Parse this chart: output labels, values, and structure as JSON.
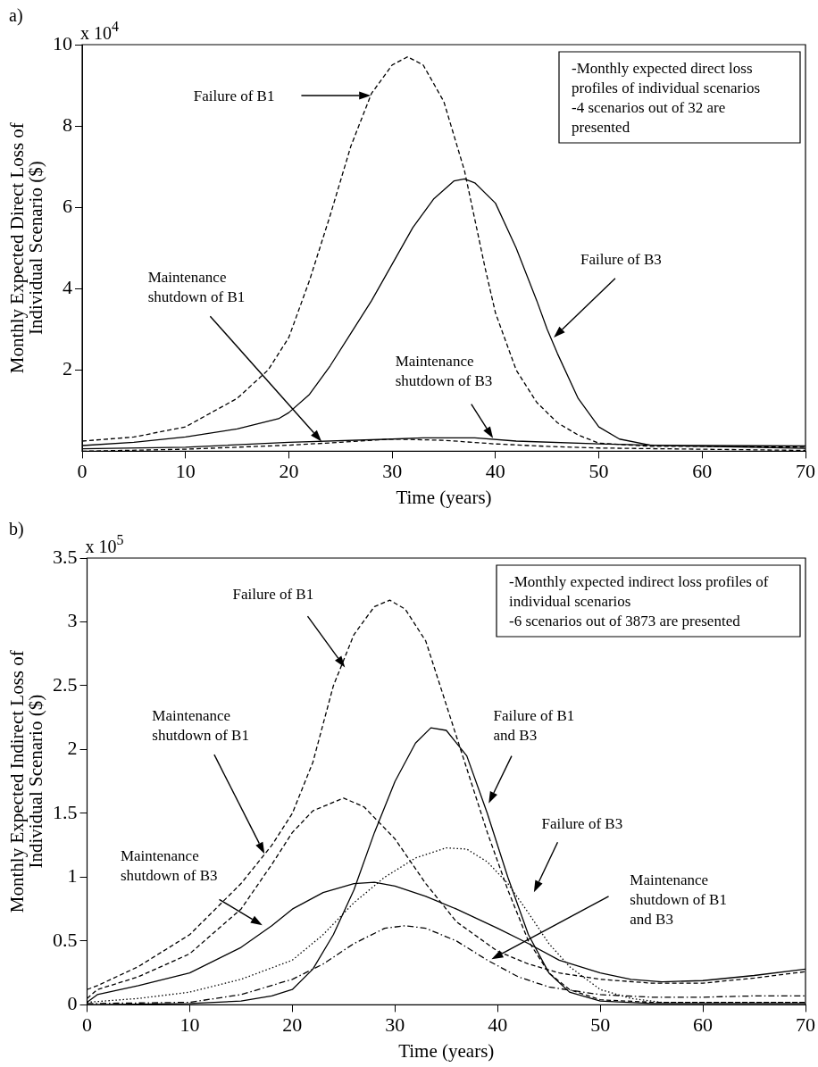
{
  "chart_data": [
    {
      "type": "line",
      "title": "a)",
      "xlabel": "Time (years)",
      "ylabel": "Monthly Expected Direct Loss of Individual Scenario ($)",
      "xlim": [
        0,
        70
      ],
      "xticks": [
        0,
        10,
        20,
        30,
        40,
        50,
        60,
        70
      ],
      "ylim": [
        0,
        10
      ],
      "yticks": [
        2,
        4,
        6,
        8,
        10
      ],
      "grid": false,
      "legend": false,
      "annotations": [
        "x 10$^{4}$",
        "-Monthly expected direct loss profiles of individual scenarios",
        "-4 scenarios out of 32 are presented",
        "Failure of B1",
        "Failure of B3",
        "Maintenance shutdown of B1",
        "Maintenance shutdown of B3"
      ],
      "series": [
        {
          "color": "#000000",
          "line_style": "dashed",
          "x": [
            0,
            5,
            10,
            15,
            18,
            20,
            22,
            24,
            26,
            28,
            30,
            31.5,
            33,
            35,
            37,
            38,
            39,
            40,
            42,
            44,
            46,
            48,
            50,
            55,
            60,
            70
          ],
          "values": [
            0.25,
            0.35,
            0.6,
            1.3,
            2.0,
            2.8,
            4.2,
            5.8,
            7.5,
            8.8,
            9.5,
            9.7,
            9.5,
            8.6,
            6.9,
            5.7,
            4.5,
            3.4,
            2.0,
            1.2,
            0.7,
            0.4,
            0.2,
            0.12,
            0.12,
            0.1
          ]
        },
        {
          "color": "#000000",
          "line_style": "solid",
          "x": [
            0,
            5,
            10,
            15,
            19,
            20,
            22,
            24,
            26,
            28,
            30,
            32,
            34,
            36,
            37,
            38,
            40,
            42,
            44,
            45,
            46,
            48,
            50,
            52,
            55,
            60,
            70
          ],
          "values": [
            0.14,
            0.22,
            0.35,
            0.55,
            0.8,
            0.95,
            1.4,
            2.1,
            2.9,
            3.7,
            4.6,
            5.5,
            6.2,
            6.65,
            6.7,
            6.6,
            6.1,
            5.0,
            3.7,
            3.0,
            2.4,
            1.3,
            0.6,
            0.3,
            0.15,
            0.14,
            0.13
          ]
        },
        {
          "color": "#000000",
          "line_style": "dashed",
          "x": [
            0,
            10,
            20,
            25,
            30,
            35,
            40,
            45,
            50,
            70
          ],
          "values": [
            0,
            0.05,
            0.15,
            0.22,
            0.3,
            0.27,
            0.18,
            0.12,
            0.08,
            0.02
          ]
        },
        {
          "color": "#000000",
          "line_style": "solid",
          "x": [
            0,
            10,
            20,
            30,
            33,
            38,
            42,
            50,
            60,
            70
          ],
          "values": [
            0.06,
            0.1,
            0.22,
            0.3,
            0.33,
            0.33,
            0.25,
            0.18,
            0.12,
            0.07
          ]
        }
      ]
    },
    {
      "type": "line",
      "title": "b)",
      "xlabel": "Time (years)",
      "ylabel": "Monthly Expected Indirect Loss of Individual Scenario ($)",
      "xlim": [
        0,
        70
      ],
      "xticks": [
        0,
        10,
        20,
        30,
        40,
        50,
        60,
        70
      ],
      "ylim": [
        0,
        3.5
      ],
      "yticks": [
        0,
        0.5,
        1,
        1.5,
        2,
        2.5,
        3,
        3.5
      ],
      "grid": false,
      "legend": false,
      "annotations": [
        "x 10$^{5}$",
        "-Monthly expected indirect loss profiles of individual scenarios",
        "-6 scenarios out of 3873 are presented",
        "Failure of B1",
        "Maintenance shutdown of B1",
        "Failure of B1 and B3",
        "Failure of B3",
        "Maintenance shutdown of B3",
        "Maintenance shutdown of B1 and B3"
      ],
      "series": [
        {
          "color": "#000000",
          "line_style": "dashed",
          "x": [
            0,
            1,
            5,
            10,
            15,
            18,
            20,
            22,
            24,
            26,
            28,
            29.5,
            31,
            33,
            35,
            37,
            39,
            41,
            43,
            45,
            47,
            50,
            55,
            70
          ],
          "values": [
            0.12,
            0.15,
            0.3,
            0.55,
            0.95,
            1.25,
            1.5,
            1.9,
            2.5,
            2.9,
            3.12,
            3.17,
            3.1,
            2.85,
            2.35,
            1.85,
            1.35,
            0.9,
            0.5,
            0.25,
            0.12,
            0.04,
            0.02,
            0.02
          ]
        },
        {
          "color": "#000000",
          "line_style": "dashed",
          "x": [
            0,
            1,
            5,
            10,
            15,
            18,
            20,
            22,
            25,
            27,
            30,
            33,
            36,
            40,
            43,
            46,
            50,
            55,
            60,
            65,
            70
          ],
          "values": [
            0.05,
            0.12,
            0.22,
            0.4,
            0.75,
            1.1,
            1.35,
            1.52,
            1.62,
            1.55,
            1.3,
            0.95,
            0.65,
            0.42,
            0.32,
            0.25,
            0.2,
            0.17,
            0.17,
            0.21,
            0.26
          ]
        },
        {
          "color": "#000000",
          "line_style": "solid",
          "x": [
            0,
            10,
            15,
            18,
            20,
            22,
            24,
            26,
            28,
            30,
            32,
            33.5,
            35,
            37,
            39,
            41,
            43,
            45,
            47,
            50,
            55,
            70
          ],
          "values": [
            0,
            0.01,
            0.03,
            0.07,
            0.12,
            0.28,
            0.55,
            0.9,
            1.35,
            1.75,
            2.05,
            2.17,
            2.15,
            1.95,
            1.5,
            1.0,
            0.55,
            0.25,
            0.1,
            0.03,
            0.01,
            0.01
          ]
        },
        {
          "color": "#000000",
          "line_style": "dotted",
          "x": [
            0,
            5,
            10,
            15,
            20,
            23,
            26,
            29,
            32,
            35,
            37,
            39,
            41,
            43,
            45,
            47,
            50,
            53,
            56,
            70
          ],
          "values": [
            0.02,
            0.05,
            0.1,
            0.2,
            0.35,
            0.55,
            0.8,
            1.0,
            1.15,
            1.23,
            1.22,
            1.12,
            0.95,
            0.72,
            0.48,
            0.3,
            0.12,
            0.05,
            0.02,
            0.02
          ]
        },
        {
          "color": "#000000",
          "line_style": "solid",
          "x": [
            0,
            1,
            5,
            10,
            15,
            18,
            20,
            23,
            26,
            28,
            30,
            33,
            36,
            40,
            43,
            46,
            50,
            53,
            56,
            60,
            65,
            70
          ],
          "values": [
            0.02,
            0.08,
            0.15,
            0.25,
            0.45,
            0.62,
            0.75,
            0.88,
            0.95,
            0.96,
            0.93,
            0.85,
            0.75,
            0.6,
            0.48,
            0.35,
            0.25,
            0.2,
            0.18,
            0.19,
            0.23,
            0.28
          ]
        },
        {
          "color": "#000000",
          "line_style": "dashdot",
          "x": [
            0,
            10,
            15,
            20,
            23,
            26,
            29,
            31,
            33,
            36,
            39,
            42,
            45,
            50,
            55,
            60,
            65,
            70
          ],
          "values": [
            0.01,
            0.02,
            0.08,
            0.2,
            0.32,
            0.48,
            0.6,
            0.62,
            0.6,
            0.5,
            0.35,
            0.22,
            0.14,
            0.08,
            0.06,
            0.06,
            0.07,
            0.07
          ]
        }
      ]
    }
  ]
}
